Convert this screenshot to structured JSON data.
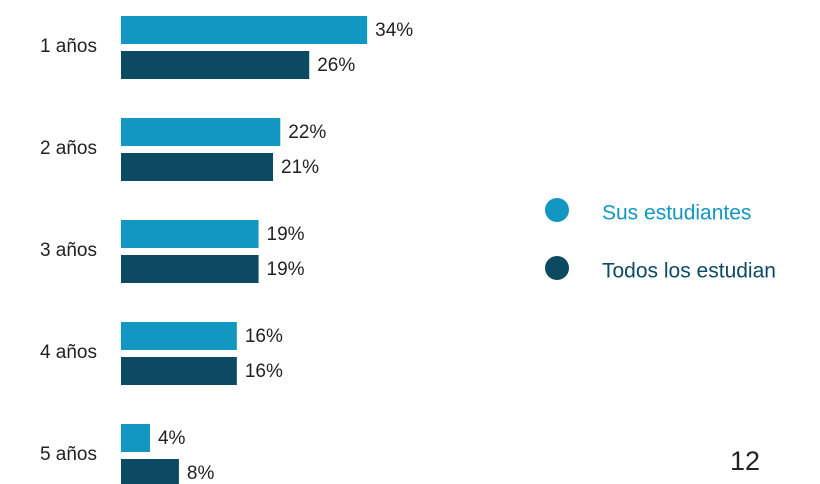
{
  "chart_data": {
    "type": "bar",
    "orientation": "horizontal",
    "categories": [
      "1 años",
      "2 años",
      "3 años",
      "4 años",
      "5 años"
    ],
    "series": [
      {
        "name": "Sus estudiantes",
        "color": "#1197c1",
        "values": [
          34,
          22,
          19,
          16,
          4
        ],
        "value_labels": [
          "34%",
          "22%",
          "19%",
          "16%",
          "4%"
        ]
      },
      {
        "name": "Todos los estudian",
        "color": "#0b4a60",
        "values": [
          26,
          21,
          19,
          16,
          8
        ],
        "value_labels": [
          "26%",
          "21%",
          "19%",
          "16%",
          "8%"
        ]
      }
    ]
  },
  "page_number": "12"
}
